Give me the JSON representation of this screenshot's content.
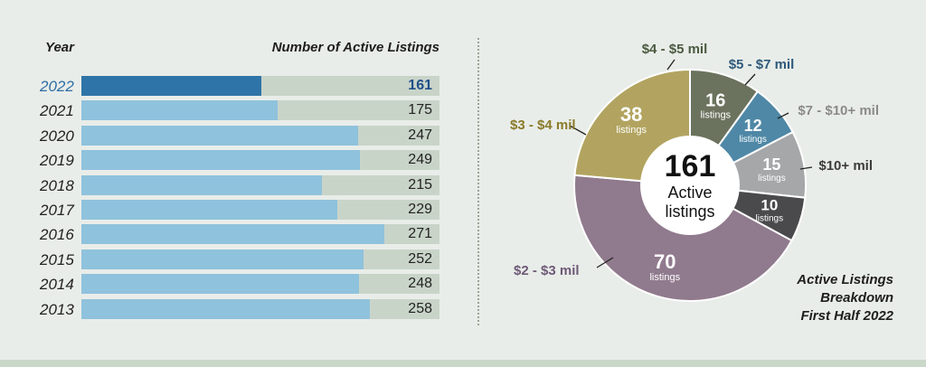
{
  "bar_chart": {
    "year_header": "Year",
    "value_header": "Number of Active Listings"
  },
  "pie_chart": {
    "center_value": "161",
    "center_line1": "Active",
    "center_line2": "listings",
    "caption_lines": [
      "Active Listings",
      "Breakdown",
      "First Half 2022"
    ]
  },
  "colors": {
    "highlight_bar": "#2f74a8",
    "bar": "#8fc2dc",
    "track": "#c9d4c9",
    "background": "#e9ede9"
  },
  "chart_data": [
    {
      "type": "bar",
      "orientation": "horizontal",
      "title": "Number of Active Listings",
      "xlabel": "",
      "ylabel": "Year",
      "categories": [
        "2022",
        "2021",
        "2020",
        "2019",
        "2018",
        "2017",
        "2016",
        "2015",
        "2014",
        "2013"
      ],
      "values": [
        161,
        175,
        247,
        249,
        215,
        229,
        271,
        252,
        248,
        258
      ],
      "highlight_category": "2022",
      "xlim": [
        0,
        320
      ],
      "grid": false
    },
    {
      "type": "pie",
      "title": "Active Listings Breakdown First Half 2022",
      "total": 161,
      "slices": [
        {
          "label": "$4 - $5 mil",
          "value": 16,
          "unit": "listings",
          "color": "#6b735e"
        },
        {
          "label": "$5 - $7 mil",
          "value": 12,
          "unit": "listings",
          "color": "#4f88a6"
        },
        {
          "label": "$7 - $10+ mil",
          "value": 15,
          "unit": "listings",
          "color": "#a6a7a9"
        },
        {
          "label": "$10+ mil",
          "value": 10,
          "unit": "listings",
          "color": "#4a4a4c"
        },
        {
          "label": "$2 - $3 mil",
          "value": 70,
          "unit": "listings",
          "color": "#907a8d"
        },
        {
          "label": "$3 - $4 mil",
          "value": 38,
          "unit": "listings",
          "color": "#b2a460"
        }
      ]
    }
  ]
}
